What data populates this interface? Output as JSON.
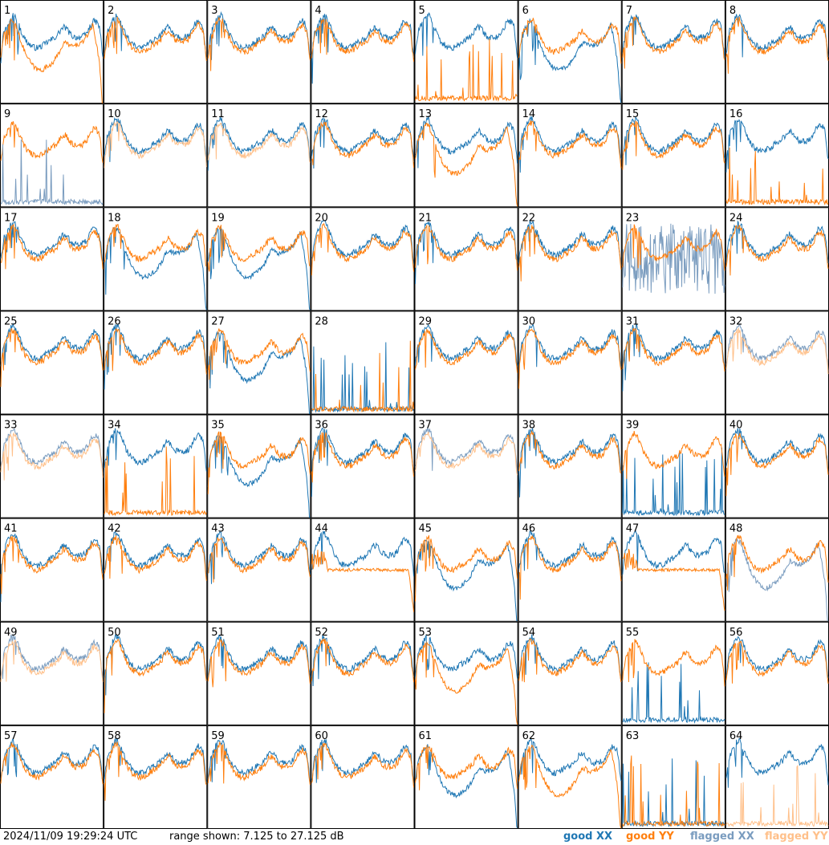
{
  "chart_data": {
    "type": "line",
    "panel_grid": {
      "rows": 8,
      "cols": 8
    },
    "panel_labels": [
      "1",
      "2",
      "3",
      "4",
      "5",
      "6",
      "7",
      "8",
      "9",
      "10",
      "11",
      "12",
      "13",
      "14",
      "15",
      "16",
      "17",
      "18",
      "19",
      "20",
      "21",
      "22",
      "23",
      "24",
      "25",
      "26",
      "27",
      "28",
      "29",
      "30",
      "31",
      "32",
      "33",
      "34",
      "35",
      "36",
      "37",
      "38",
      "39",
      "40",
      "41",
      "42",
      "43",
      "44",
      "45",
      "46",
      "47",
      "48",
      "49",
      "50",
      "51",
      "52",
      "53",
      "54",
      "55",
      "56",
      "57",
      "58",
      "59",
      "60",
      "61",
      "62",
      "63",
      "64"
    ],
    "ylim": [
      7.125,
      27.125
    ],
    "y_unit": "dB",
    "legend_placement": "bottom-right",
    "legend": [
      {
        "key": "good_xx",
        "label": "good XX",
        "color": "#1f77b4"
      },
      {
        "key": "good_yy",
        "label": "good YY",
        "color": "#ff7f0e"
      },
      {
        "key": "flagged_xx",
        "label": "flagged XX",
        "color": "#7a9cbf"
      },
      {
        "key": "flagged_yy",
        "label": "flagged YY",
        "color": "#ffc08a"
      }
    ],
    "panel_series": [
      [
        "good_xx",
        "good_yy"
      ],
      [
        "good_xx",
        "good_yy"
      ],
      [
        "good_xx",
        "good_yy"
      ],
      [
        "good_xx",
        "good_yy"
      ],
      [
        "good_xx",
        "good_yy"
      ],
      [
        "good_xx",
        "good_yy"
      ],
      [
        "good_xx",
        "good_yy"
      ],
      [
        "good_xx",
        "good_yy"
      ],
      [
        "good_yy",
        "flagged_xx"
      ],
      [
        "good_xx",
        "flagged_yy"
      ],
      [
        "good_xx",
        "flagged_yy"
      ],
      [
        "good_xx",
        "good_yy"
      ],
      [
        "good_xx",
        "good_yy"
      ],
      [
        "good_xx",
        "good_yy"
      ],
      [
        "good_xx",
        "good_yy"
      ],
      [
        "good_xx",
        "good_yy"
      ],
      [
        "good_xx",
        "good_yy"
      ],
      [
        "good_xx",
        "good_yy"
      ],
      [
        "good_xx",
        "good_yy"
      ],
      [
        "good_xx",
        "good_yy"
      ],
      [
        "good_xx",
        "good_yy"
      ],
      [
        "good_xx",
        "good_yy"
      ],
      [
        "flagged_xx",
        "good_yy"
      ],
      [
        "good_xx",
        "good_yy"
      ],
      [
        "good_xx",
        "good_yy"
      ],
      [
        "good_xx",
        "good_yy"
      ],
      [
        "good_xx",
        "good_yy"
      ],
      [
        "good_xx",
        "good_yy"
      ],
      [
        "good_xx",
        "good_yy"
      ],
      [
        "good_xx",
        "good_yy"
      ],
      [
        "good_xx",
        "good_yy"
      ],
      [
        "flagged_xx",
        "flagged_yy"
      ],
      [
        "flagged_xx",
        "flagged_yy"
      ],
      [
        "good_xx",
        "good_yy"
      ],
      [
        "good_xx",
        "good_yy"
      ],
      [
        "good_xx",
        "good_yy"
      ],
      [
        "flagged_xx",
        "flagged_yy"
      ],
      [
        "good_xx",
        "good_yy"
      ],
      [
        "good_xx",
        "good_yy"
      ],
      [
        "good_xx",
        "good_yy"
      ],
      [
        "good_xx",
        "good_yy"
      ],
      [
        "good_xx",
        "good_yy"
      ],
      [
        "good_xx",
        "good_yy"
      ],
      [
        "good_xx",
        "good_yy"
      ],
      [
        "good_xx",
        "good_yy"
      ],
      [
        "good_xx",
        "good_yy"
      ],
      [
        "good_xx",
        "good_yy"
      ],
      [
        "flagged_xx",
        "good_yy"
      ],
      [
        "flagged_xx",
        "flagged_yy"
      ],
      [
        "good_xx",
        "good_yy"
      ],
      [
        "good_xx",
        "good_yy"
      ],
      [
        "good_xx",
        "good_yy"
      ],
      [
        "good_xx",
        "good_yy"
      ],
      [
        "good_xx",
        "good_yy"
      ],
      [
        "good_xx",
        "good_yy"
      ],
      [
        "good_xx",
        "good_yy"
      ],
      [
        "good_xx",
        "good_yy"
      ],
      [
        "good_xx",
        "good_yy"
      ],
      [
        "good_xx",
        "good_yy"
      ],
      [
        "good_xx",
        "good_yy"
      ],
      [
        "good_xx",
        "good_yy"
      ],
      [
        "good_xx",
        "good_yy"
      ],
      [
        "good_xx",
        "good_yy"
      ],
      [
        "good_xx",
        "flagged_yy"
      ]
    ],
    "panel_shape": {
      "5": {
        "yy": "low"
      },
      "16": {
        "yy": "low"
      },
      "28": {
        "xx": "low",
        "yy": "low"
      },
      "39": {
        "xx": "low"
      },
      "55": {
        "xx": "low"
      },
      "63": {
        "xx": "low",
        "yy": "low"
      },
      "64": {
        "yy": "low"
      },
      "9": {
        "xx": "low"
      },
      "23": {
        "xx": "noisy"
      },
      "34": {
        "yy": "low"
      },
      "6": {
        "xx": "sag"
      },
      "27": {
        "xx": "sag"
      },
      "61": {
        "xx": "sag"
      },
      "45": {
        "xx": "sag"
      },
      "35": {
        "xx": "sag"
      },
      "18": {
        "xx": "sag"
      },
      "19": {
        "xx": "sag"
      },
      "48": {
        "xx": "sag"
      },
      "1": {
        "yy": "sag"
      },
      "13": {
        "yy": "sag"
      },
      "53": {
        "yy": "sag"
      },
      "62": {
        "yy": "sag"
      },
      "44": {
        "yy": "flat"
      },
      "47": {
        "yy": "flat"
      }
    }
  },
  "footer": {
    "timestamp": "2024/11/09 19:29:24 UTC",
    "range_text": "range shown: 7.125 to 27.125 dB"
  }
}
